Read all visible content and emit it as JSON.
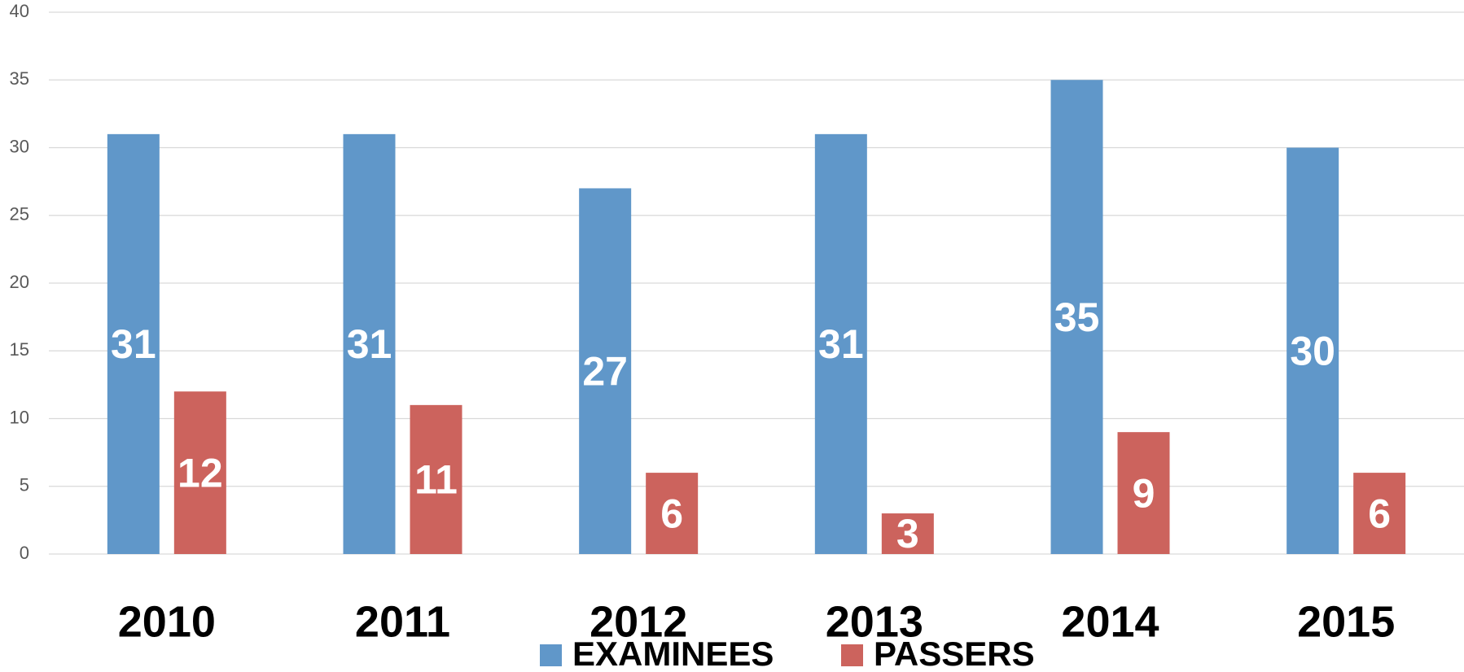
{
  "chart_data": {
    "type": "bar",
    "categories": [
      "2010",
      "2011",
      "2012",
      "2013",
      "2014",
      "2015"
    ],
    "series": [
      {
        "name": "EXAMINEES",
        "color": "#6097c9",
        "values": [
          31,
          31,
          27,
          31,
          35,
          30
        ]
      },
      {
        "name": "PASSERS",
        "color": "#cc635d",
        "values": [
          12,
          11,
          6,
          3,
          9,
          6
        ]
      }
    ],
    "ylim": [
      0,
      40
    ],
    "yticks": [
      0,
      5,
      10,
      15,
      20,
      25,
      30,
      35,
      40
    ],
    "grid": true,
    "legend": "bottom"
  }
}
